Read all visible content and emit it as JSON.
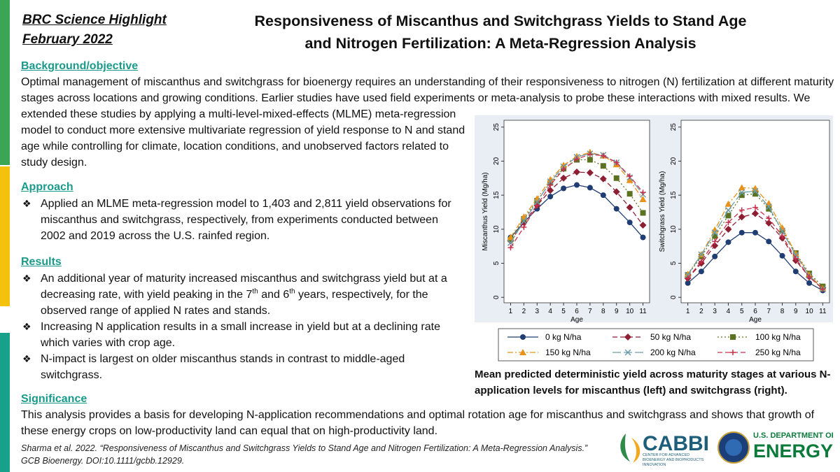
{
  "header": {
    "label": "BRC Science Highlight",
    "date": "February 2022",
    "title": [
      "Responsiveness of Miscanthus and Switchgrass Yields to Stand Age",
      "and Nitrogen Fertilization: A Meta-Regression Analysis"
    ]
  },
  "background": {
    "heading": "Background/objective",
    "text": "Optimal management of miscanthus and switchgrass for bioenergy requires an understanding of their responsiveness to nitrogen (N) fertilization at different maturity stages across locations and growing conditions. Earlier studies have used field experiments or meta-analysis to probe these interactions with mixed results. We extended these studies by applying a multi-level-mixed-effects (MLME) meta-regression model to conduct more extensive multivariate regression of yield response to N and stand age while controlling for climate, location conditions, and unobserved factors related to study design."
  },
  "approach": {
    "heading": "Approach",
    "items": [
      "Applied an MLME meta-regression model to 1,403 and 2,811 yield observations for miscanthus and switchgrass, respectively, from experiments conducted between 2002 and 2019 across the U.S. rainfed region."
    ]
  },
  "results": {
    "heading": "Results",
    "items": [
      [
        "An additional year of maturity increased miscanthus and switchgrass yield but at a decreasing rate, with yield peaking in the 7",
        "th",
        " and 6",
        "th",
        " years, respectively, for the observed range of applied N rates and stands."
      ],
      "Increasing N application results in a small increase in yield but at a declining rate which varies with crop age.",
      "N-impact is largest on older miscanthus stands in contrast to middle-aged switchgrass."
    ]
  },
  "significance": {
    "heading": "Significance",
    "text": "This analysis provides a basis for developing N-application recommendations and optimal rotation age for miscanthus and switchgrass and shows that growth of these energy crops on low-productivity land can equal that on high-productivity land."
  },
  "caption": "Mean predicted deterministic yield across maturity stages at various N-application levels for miscanthus (left) and switchgrass (right).",
  "citation": [
    "Sharma et al. 2022. “Responsiveness of Miscanthus and Switchgrass Yields to Stand Age and Nitrogen Fertilization: A Meta-Regression Analysis.”",
    "GCB Bioenergy. DOI:10.1111/gcbb.12929."
  ],
  "logos": {
    "cabbi": "CABBI",
    "cabbi_sub": "CENTER FOR ADVANCED BIOENERGY AND BIOPRODUCTS INNOVATION",
    "doe_top": "U.S. DEPARTMENT OF",
    "doe": "ENERGY"
  },
  "chart_data": {
    "type": "line",
    "x": [
      1,
      2,
      3,
      4,
      5,
      6,
      7,
      8,
      9,
      10,
      11
    ],
    "xlim": [
      0.5,
      11.5
    ],
    "xticks": [
      1,
      2,
      3,
      4,
      5,
      6,
      7,
      8,
      9,
      10,
      11
    ],
    "ylim": [
      -0.8,
      26
    ],
    "yticks": [
      0,
      5,
      10,
      15,
      20,
      25
    ],
    "series": [
      {
        "name": "0 kg N/ha",
        "color": "#1f3d73",
        "marker": "circle",
        "dash": "solid"
      },
      {
        "name": "50 kg N/ha",
        "color": "#8e1f33",
        "marker": "diamond",
        "dash": "dashed"
      },
      {
        "name": "100 kg N/ha",
        "color": "#5b7320",
        "marker": "square",
        "dash": "dotted"
      },
      {
        "name": "150 kg N/ha",
        "color": "#e8921c",
        "marker": "triangle",
        "dash": "dashdot"
      },
      {
        "name": "200 kg N/ha",
        "color": "#6a9ca8",
        "marker": "x",
        "dash": "longdash"
      },
      {
        "name": "250 kg N/ha",
        "color": "#c7304c",
        "marker": "plus",
        "dash": "dashed"
      }
    ],
    "panels": [
      {
        "ylabel": "Miscanthus Yield (Mg/ha)",
        "xlabel": "Age",
        "values": [
          [
            8.8,
            11,
            13,
            14.8,
            16,
            16.5,
            16.1,
            15,
            13,
            11,
            8.8
          ],
          [
            8.3,
            11,
            13.5,
            15.7,
            17.5,
            18.4,
            18.3,
            17.4,
            15.5,
            13.2,
            10.6
          ],
          [
            8.5,
            11.5,
            14.2,
            16.8,
            18.9,
            20.2,
            20.2,
            19.3,
            17.5,
            15.2,
            12.4
          ],
          [
            8.8,
            11.8,
            14.5,
            17.3,
            19.4,
            20.7,
            21.3,
            20.8,
            19.5,
            17.2,
            14.4
          ],
          [
            8,
            11.2,
            14,
            17,
            19.2,
            20.6,
            21.1,
            20.9,
            19.8,
            17.6,
            15.1
          ],
          [
            7.3,
            10.3,
            13.5,
            16.5,
            18.8,
            20.3,
            21,
            20.8,
            19.8,
            17.8,
            15.4
          ]
        ]
      },
      {
        "ylabel": "Switchgrass Yield (Mg/ha)",
        "xlabel": "Age",
        "values": [
          [
            2.1,
            3.8,
            6,
            8.1,
            9.5,
            9.5,
            8.2,
            6.1,
            3.8,
            2.1,
            1
          ],
          [
            2.8,
            5,
            7.6,
            10,
            11.8,
            12.3,
            10.9,
            8.7,
            5.4,
            3,
            1.4
          ],
          [
            3.3,
            6,
            9,
            12,
            15,
            15.2,
            13,
            9.8,
            6.5,
            3.5,
            1.6
          ],
          [
            3.4,
            6.3,
            9.9,
            13.7,
            16.1,
            16,
            13.8,
            10.2,
            6.4,
            3.3,
            1.3
          ],
          [
            3.3,
            6.3,
            9.5,
            12.8,
            15.4,
            15.6,
            13.3,
            9.7,
            6.2,
            3.2,
            1.2
          ],
          [
            2.8,
            5.3,
            8.2,
            11,
            12.8,
            13.2,
            11.6,
            9,
            5.7,
            3,
            1.2
          ]
        ]
      }
    ]
  }
}
